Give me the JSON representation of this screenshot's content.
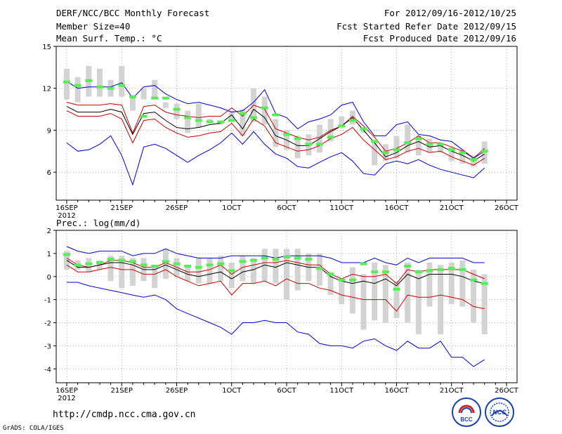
{
  "header": {
    "title": "DERF/NCC/BCC Monthly Forecast",
    "member_size": "Member Size=40",
    "variable": "Mean Surf. Temp.: °C",
    "period": "For 2012/09/16-2012/10/25",
    "started": "Fcst Started Refer Date 2012/09/15",
    "produced": "Fcst Produced Date 2012/09/16"
  },
  "footer": {
    "url": "http://cmdp.ncc.cma.gov.cn",
    "grads": "GrADS: COLA/IGES",
    "logo_bcc": "BCC",
    "logo_ncc": "NCC"
  },
  "colors": {
    "envelope": "#0000cc",
    "spread": "#cc0000",
    "mean": "#000000",
    "box": "#d3d3d3",
    "marker": "#55ee55",
    "grid": "#999999"
  },
  "chart_data": [
    {
      "type": "line",
      "title": "Mean Surf. Temp.: °C",
      "x_start": "16SEP",
      "x_labels": [
        "16SEP",
        "21SEP",
        "26SEP",
        "1OCT",
        "6OCT",
        "11OCT",
        "16OCT",
        "21OCT",
        "26OCT"
      ],
      "x_sublabel": "2012",
      "ylim": [
        4,
        15
      ],
      "yticks": [
        15,
        12,
        9,
        6
      ],
      "series": [
        {
          "name": "max",
          "values": [
            8.1,
            7.5,
            7.6,
            8.0,
            8.6,
            7.2,
            5.1,
            7.8,
            8.0,
            7.7,
            7.2,
            6.7,
            7.2,
            7.6,
            8.1,
            8.8,
            8.0,
            8.9,
            8.0,
            7.3,
            7.0,
            6.4,
            6.3,
            6.7,
            7.1,
            7.4,
            6.8,
            5.9,
            5.8,
            6.6,
            6.8,
            6.6,
            6.9,
            6.5,
            6.2,
            6.0,
            5.8,
            5.6,
            6.3
          ]
        },
        {
          "name": "mean_plus",
          "values": [
            11.0,
            10.8,
            10.8,
            10.8,
            10.9,
            10.8,
            8.8,
            10.7,
            10.8,
            10.3,
            10.1,
            10.0,
            9.9,
            10.0,
            10.0,
            10.6,
            10.0,
            10.8,
            10.5,
            9.1,
            8.8,
            8.5,
            8.3,
            8.5,
            9.0,
            9.3,
            10.0,
            9.3,
            8.5,
            7.5,
            7.7,
            8.1,
            8.6,
            8.1,
            8.1,
            7.8,
            7.5,
            7.0,
            7.7
          ]
        },
        {
          "name": "mean",
          "values": [
            10.7,
            10.3,
            10.3,
            10.3,
            10.5,
            10.3,
            8.7,
            10.2,
            10.3,
            9.7,
            9.2,
            9.1,
            9.2,
            9.4,
            9.5,
            10.1,
            9.1,
            10.5,
            9.9,
            8.6,
            8.3,
            7.9,
            7.9,
            8.4,
            8.9,
            9.3,
            9.9,
            9.0,
            8.1,
            7.1,
            7.4,
            7.9,
            8.2,
            7.8,
            7.9,
            7.5,
            7.2,
            6.8,
            7.3
          ]
        },
        {
          "name": "mean_minus",
          "values": [
            10.4,
            10.0,
            10.0,
            10.0,
            10.2,
            9.8,
            8.1,
            9.7,
            9.8,
            9.2,
            8.8,
            8.5,
            8.6,
            8.8,
            8.9,
            9.5,
            8.6,
            9.8,
            9.3,
            8.1,
            7.8,
            7.5,
            7.6,
            7.9,
            8.4,
            8.7,
            9.2,
            8.3,
            7.6,
            6.9,
            7.1,
            7.5,
            7.7,
            7.4,
            7.5,
            7.1,
            6.8,
            6.5,
            7.0
          ]
        },
        {
          "name": "min",
          "values": [
            12.5,
            12.0,
            12.1,
            12.1,
            12.1,
            12.4,
            11.3,
            12.1,
            12.2,
            11.6,
            11.2,
            10.9,
            11.0,
            10.8,
            10.6,
            10.3,
            10.4,
            11.0,
            11.9,
            10.2,
            9.9,
            9.1,
            9.6,
            9.8,
            10.1,
            10.8,
            11.0,
            9.6,
            8.6,
            8.6,
            9.4,
            9.6,
            8.7,
            8.6,
            8.3,
            8.2,
            7.6,
            7.0,
            7.5
          ]
        }
      ],
      "boxes_low": [
        11.2,
        11.0,
        11.4,
        11.4,
        11.4,
        11.4,
        10.4,
        11.2,
        11.2,
        10.6,
        9.8,
        8.8,
        9.2,
        9.7,
        9.4,
        9.8,
        8.6,
        9.6,
        9.4,
        7.8,
        7.6,
        7.0,
        7.2,
        7.4,
        8.2,
        9.4,
        9.4,
        8.8,
        6.5,
        6.8,
        7.0,
        7.4,
        7.2,
        7.4,
        7.4,
        6.8,
        6.6,
        6.4,
        6.6
      ],
      "boxes_high": [
        13.4,
        12.8,
        13.6,
        13.4,
        12.6,
        13.6,
        11.5,
        12.0,
        12.6,
        11.0,
        10.9,
        10.4,
        10.9,
        9.8,
        9.6,
        10.4,
        10.5,
        12.0,
        11.4,
        9.8,
        9.0,
        8.6,
        8.7,
        9.4,
        9.8,
        10.0,
        10.4,
        9.0,
        8.3,
        8.0,
        8.6,
        9.4,
        8.6,
        8.4,
        8.1,
        7.8,
        7.6,
        7.2,
        8.2
      ],
      "markers": [
        12.45,
        12.2,
        12.55,
        12.1,
        12.0,
        12.2,
        11.4,
        10.0,
        11.3,
        11.3,
        10.5,
        9.9,
        9.7,
        9.6,
        9.6,
        9.7,
        10.2,
        9.9,
        10.6,
        10.1,
        8.7,
        8.4,
        8.0,
        8.0,
        8.5,
        9.3,
        9.7,
        9.1,
        8.2,
        7.4,
        7.6,
        8.1,
        8.4,
        8.0,
        8.0,
        7.6,
        7.4,
        6.9,
        7.5
      ]
    },
    {
      "type": "line",
      "title": "Prec.: log(mm/d)",
      "x_start": "16SEP",
      "x_labels": [
        "16SEP",
        "21SEP",
        "26SEP",
        "1OCT",
        "6OCT",
        "11OCT",
        "16OCT",
        "21OCT",
        "26OCT"
      ],
      "x_sublabel": "2012",
      "ylim": [
        -4.6,
        2
      ],
      "yticks": [
        2,
        1,
        0,
        -1,
        -2,
        -3,
        -4
      ],
      "series": [
        {
          "name": "max",
          "values": [
            1.3,
            1.1,
            1.0,
            1.1,
            1.1,
            1.1,
            0.9,
            1.0,
            1.0,
            1.2,
            1.0,
            0.9,
            0.8,
            0.8,
            0.8,
            0.9,
            0.9,
            0.9,
            0.9,
            0.8,
            0.9,
            0.9,
            0.9,
            0.9,
            0.8,
            0.6,
            0.6,
            0.6,
            0.8,
            0.6,
            0.5,
            0.8,
            0.6,
            0.8,
            0.8,
            0.8,
            0.8,
            0.6,
            0.6
          ]
        },
        {
          "name": "mean_plus",
          "values": [
            0.8,
            0.5,
            0.4,
            0.5,
            0.7,
            0.7,
            0.6,
            0.4,
            0.4,
            0.6,
            0.4,
            0.2,
            0.2,
            0.3,
            0.5,
            0.1,
            0.4,
            0.5,
            0.6,
            0.6,
            0.7,
            0.6,
            0.5,
            0.5,
            0.1,
            -0.1,
            0.1,
            0.0,
            0.0,
            0.1,
            -0.3,
            0.3,
            0.2,
            0.3,
            0.3,
            0.3,
            0.3,
            0.1,
            -0.1
          ]
        },
        {
          "name": "mean",
          "values": [
            0.7,
            0.4,
            0.4,
            0.5,
            0.6,
            0.6,
            0.5,
            0.3,
            0.3,
            0.5,
            0.3,
            0.1,
            0.0,
            0.1,
            0.2,
            -0.1,
            0.2,
            0.3,
            0.5,
            0.4,
            0.6,
            0.5,
            0.4,
            0.4,
            0.0,
            -0.2,
            -0.3,
            -0.2,
            -0.3,
            -0.1,
            -0.4,
            0.1,
            -0.1,
            0.1,
            0.1,
            0.1,
            0.0,
            -0.2,
            -0.3
          ]
        },
        {
          "name": "mean_minus",
          "values": [
            0.5,
            0.2,
            0.2,
            0.3,
            0.4,
            0.3,
            0.3,
            0.1,
            0.1,
            0.3,
            0.0,
            -0.2,
            -0.4,
            -0.3,
            -0.2,
            -0.8,
            -0.3,
            -0.3,
            -0.2,
            -0.4,
            -0.1,
            -0.3,
            -0.3,
            -0.5,
            -0.6,
            -0.8,
            -0.9,
            -1.0,
            -1.0,
            -1.0,
            -1.5,
            -0.8,
            -0.9,
            -0.9,
            -0.8,
            -0.9,
            -1.0,
            -1.3,
            -1.4
          ]
        },
        {
          "name": "min",
          "values": [
            -0.25,
            -0.25,
            -0.4,
            -0.5,
            -0.6,
            -0.7,
            -0.8,
            -0.9,
            -0.8,
            -1.0,
            -1.4,
            -1.6,
            -1.8,
            -2.0,
            -2.2,
            -2.5,
            -2.0,
            -2.0,
            -1.9,
            -2.0,
            -2.0,
            -2.4,
            -2.5,
            -2.9,
            -3.0,
            -3.0,
            -3.1,
            -2.8,
            -2.7,
            -3.0,
            -3.2,
            -2.8,
            -3.1,
            -3.1,
            -2.8,
            -3.5,
            -3.5,
            -3.9,
            -3.6
          ]
        }
      ],
      "boxes_low": [
        0.3,
        0.3,
        0.2,
        0.3,
        -0.2,
        -0.5,
        -0.4,
        -0.2,
        -0.5,
        -0.1,
        0.0,
        -0.2,
        -0.3,
        -0.3,
        -0.2,
        -0.5,
        -0.2,
        -0.3,
        -0.2,
        -0.3,
        -1.0,
        -0.6,
        -0.2,
        -0.4,
        -0.8,
        -1.2,
        -1.6,
        -2.3,
        -1.9,
        -2.0,
        -1.8,
        -2.0,
        -2.5,
        -1.3,
        -2.5,
        -1.2,
        -1.3,
        -2.0,
        -2.5
      ],
      "boxes_high": [
        1.1,
        0.7,
        0.8,
        0.7,
        0.9,
        0.9,
        0.8,
        0.8,
        0.4,
        1.2,
        0.8,
        0.5,
        0.8,
        0.8,
        0.9,
        0.6,
        0.9,
        0.8,
        1.2,
        1.2,
        1.2,
        1.2,
        1.0,
        1.0,
        0.2,
        -0.1,
        0.4,
        0.1,
        0.6,
        0.5,
        -0.2,
        0.6,
        0.3,
        0.6,
        0.5,
        0.6,
        0.7,
        0.3,
        0.1
      ],
      "markers": [
        0.95,
        0.5,
        0.55,
        0.6,
        0.75,
        0.7,
        0.65,
        0.5,
        0.45,
        0.65,
        0.55,
        0.45,
        0.4,
        0.5,
        0.55,
        0.25,
        0.65,
        0.7,
        0.8,
        0.75,
        0.85,
        0.8,
        0.75,
        0.35,
        0.1,
        -0.15,
        -0.15,
        0.55,
        0.2,
        0.2,
        -0.55,
        0.45,
        0.2,
        0.25,
        0.3,
        0.35,
        0.3,
        -0.15,
        -0.3
      ]
    }
  ]
}
